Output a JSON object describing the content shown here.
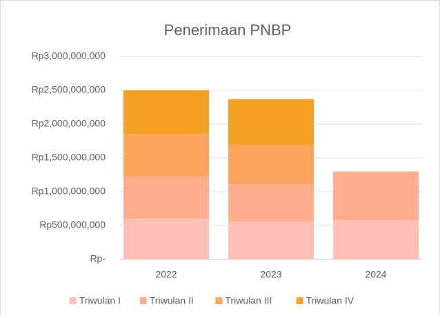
{
  "chart_data": {
    "type": "stacked_bar",
    "title": "Penerimaan PNBP",
    "categories": [
      "2022",
      "2023",
      "2024"
    ],
    "series": [
      {
        "name": "Triwulan I",
        "color": "#ffbfb5",
        "values": [
          600000000,
          560000000,
          580000000
        ]
      },
      {
        "name": "Triwulan II",
        "color": "#ffad8c",
        "values": [
          625000000,
          550000000,
          720000000
        ]
      },
      {
        "name": "Triwulan III",
        "color": "#ffa45c",
        "values": [
          630000000,
          580000000,
          null
        ]
      },
      {
        "name": "Triwulan IV",
        "color": "#f4a022",
        "values": [
          645000000,
          680000000,
          null
        ]
      }
    ],
    "ylim": [
      0,
      3000000000
    ],
    "yticks": [
      {
        "value": 0,
        "label": "Rp-"
      },
      {
        "value": 500000000,
        "label": "Rp500,000,000"
      },
      {
        "value": 1000000000,
        "label": "Rp1,000,000,000"
      },
      {
        "value": 1500000000,
        "label": "Rp1,500,000,000"
      },
      {
        "value": 2000000000,
        "label": "Rp2,000,000,000"
      },
      {
        "value": 2500000000,
        "label": "Rp2,500,000,000"
      },
      {
        "value": 3000000000,
        "label": "Rp3,000,000,000"
      }
    ],
    "grid": true,
    "legend": "bottom"
  }
}
